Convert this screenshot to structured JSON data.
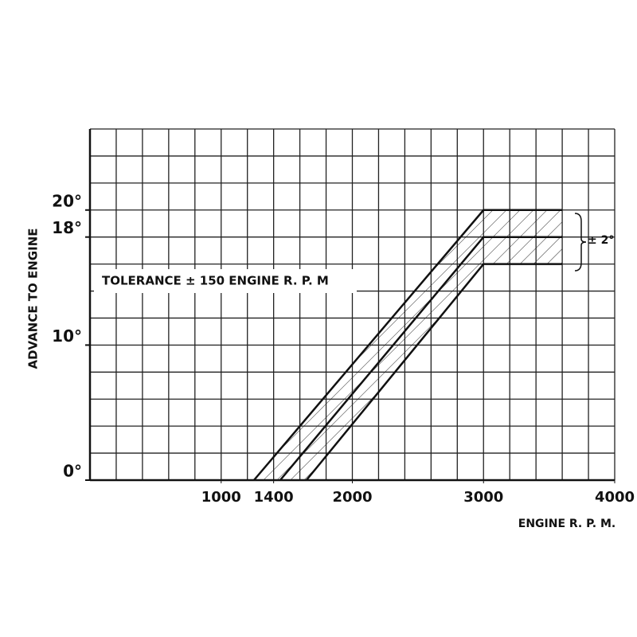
{
  "chart_data": {
    "type": "line",
    "y_label": "ADVANCE TO ENGINE",
    "x_label": "ENGINE R. P. M.",
    "annotations": [
      "TOLERANCE ± 150 ENGINE R. P. M",
      "± 2°"
    ],
    "xlim": [
      0,
      4000
    ],
    "xticks": [
      1000,
      1400,
      2000,
      3000,
      4000
    ],
    "ylim": [
      0,
      26
    ],
    "yticks": [
      {
        "value": 0,
        "label": "0°"
      },
      {
        "value": 10,
        "label": "10°"
      },
      {
        "value": 18,
        "label": "18°"
      },
      {
        "value": 20,
        "label": "20°"
      }
    ],
    "grid": true,
    "series": [
      {
        "color": "#111111",
        "x": [
          1250,
          3000,
          3600
        ],
        "values": [
          0,
          20,
          20
        ]
      },
      {
        "color": "#111111",
        "x": [
          1450,
          3000,
          3600
        ],
        "values": [
          0,
          18,
          18
        ]
      },
      {
        "color": "#111111",
        "x": [
          1650,
          3000,
          3600
        ],
        "values": [
          0,
          16,
          16
        ]
      }
    ]
  }
}
